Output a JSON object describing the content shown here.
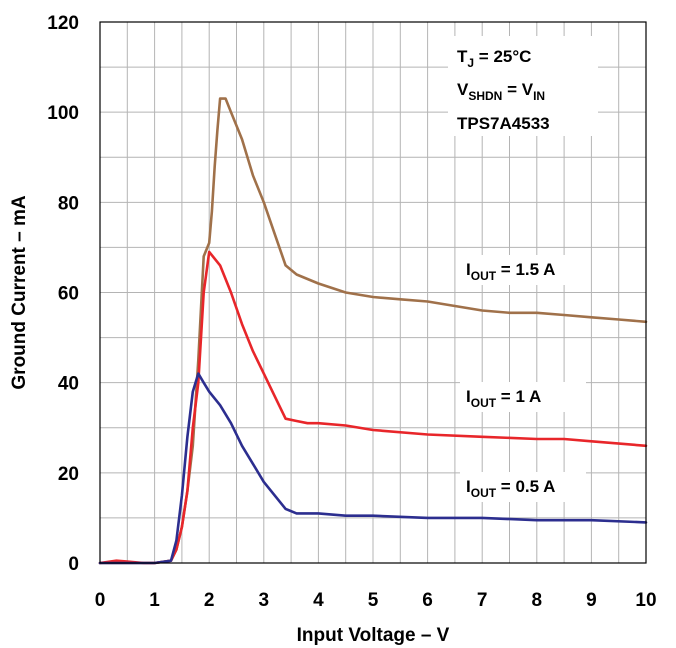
{
  "chart_data": {
    "type": "line",
    "xlabel": "Input Voltage – V",
    "ylabel": "Ground Current – mA",
    "xlim": [
      0,
      10
    ],
    "ylim": [
      0,
      120
    ],
    "x_ticks": [
      "0",
      "1",
      "2",
      "3",
      "4",
      "5",
      "6",
      "7",
      "8",
      "9",
      "10"
    ],
    "y_ticks": [
      "0",
      "20",
      "40",
      "60",
      "80",
      "100",
      "120"
    ],
    "grid": true,
    "conditions": {
      "line1": {
        "main": "T",
        "sub": "J",
        "rest": " = 25°C"
      },
      "line2": {
        "main": "V",
        "sub": "SHDN",
        "mid": " = V",
        "sub2": "IN"
      },
      "line3": "TPS7A4533"
    },
    "series": [
      {
        "name": "I_OUT = 1.5 A",
        "label": {
          "main": "I",
          "sub": "OUT",
          "rest": " = 1.5 A"
        },
        "color": "#a0714a",
        "x": [
          0,
          1.0,
          1.3,
          1.4,
          1.5,
          1.6,
          1.7,
          1.8,
          1.9,
          2.0,
          2.05,
          2.1,
          2.15,
          2.2,
          2.3,
          2.4,
          2.6,
          2.8,
          3.0,
          3.2,
          3.4,
          3.6,
          3.8,
          4.0,
          4.5,
          5.0,
          5.5,
          6.0,
          6.5,
          7.0,
          7.5,
          8.0,
          8.5,
          9.0,
          9.5,
          10.0
        ],
        "y": [
          0,
          0,
          0.5,
          3,
          8,
          16,
          26,
          45,
          68,
          71,
          78,
          88,
          96,
          103,
          103,
          100,
          94,
          86,
          80,
          73,
          66,
          64,
          63,
          62,
          60,
          59,
          58.5,
          58,
          57,
          56,
          55.5,
          55.5,
          55,
          54.5,
          54,
          53.5
        ]
      },
      {
        "name": "I_OUT = 1 A",
        "label": {
          "main": "I",
          "sub": "OUT",
          "rest": " = 1 A"
        },
        "color": "#e8262a",
        "x": [
          0,
          0.3,
          0.5,
          0.8,
          1.0,
          1.3,
          1.4,
          1.5,
          1.6,
          1.7,
          1.8,
          1.9,
          2.0,
          2.2,
          2.4,
          2.6,
          2.8,
          3.0,
          3.2,
          3.4,
          3.6,
          3.8,
          4.0,
          4.5,
          5.0,
          6.0,
          7.0,
          8.0,
          8.5,
          9.0,
          10.0
        ],
        "y": [
          0,
          0.5,
          0.3,
          0,
          0,
          0.5,
          3,
          8,
          16,
          30,
          40,
          60,
          69,
          66,
          60,
          53,
          47,
          42,
          37,
          32,
          31.5,
          31,
          31,
          30.5,
          29.5,
          28.5,
          28,
          27.5,
          27.5,
          27,
          26
        ]
      },
      {
        "name": "I_OUT = 0.5 A",
        "label": {
          "main": "I",
          "sub": "OUT",
          "rest": " = 0.5 A"
        },
        "color": "#2c2e8f",
        "x": [
          0,
          1.0,
          1.3,
          1.4,
          1.5,
          1.6,
          1.7,
          1.8,
          1.9,
          2.0,
          2.2,
          2.4,
          2.6,
          2.8,
          3.0,
          3.2,
          3.4,
          3.6,
          3.8,
          4.0,
          4.5,
          5.0,
          6.0,
          7.0,
          8.0,
          9.0,
          10.0
        ],
        "y": [
          0,
          0,
          0.5,
          5,
          15,
          28,
          38,
          42,
          40,
          38,
          35,
          31,
          26,
          22,
          18,
          15,
          12,
          11,
          11,
          11,
          10.5,
          10.5,
          10,
          10,
          9.5,
          9.5,
          9
        ]
      }
    ]
  }
}
